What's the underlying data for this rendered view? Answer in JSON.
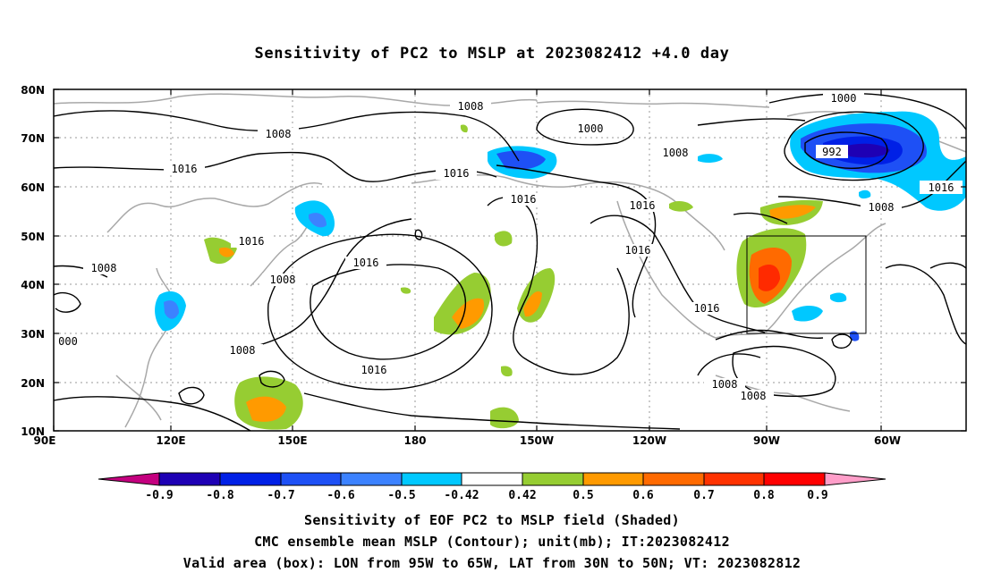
{
  "title": "Sensitivity of PC2 to MSLP at 2023082412 +4.0 day",
  "lat_labels": [
    "80N",
    "70N",
    "60N",
    "50N",
    "40N",
    "30N",
    "20N",
    "10N"
  ],
  "lon_labels": [
    "90E",
    "120E",
    "150E",
    "180",
    "150W",
    "120W",
    "90W",
    "60W"
  ],
  "contour_labels": [
    "1008",
    "1000",
    "1008",
    "1008",
    "1016",
    "1016",
    "1016",
    "1016",
    "1016",
    "1016",
    "1016",
    "1008",
    "1008",
    "000",
    "1008",
    "1016",
    "1016",
    "1000",
    "992",
    "1016",
    "1008",
    "1008",
    "1008"
  ],
  "colorbar": {
    "tick_labels": [
      "-0.9",
      "-0.8",
      "-0.7",
      "-0.6",
      "-0.5",
      "-0.42",
      "0.42",
      "0.5",
      "0.6",
      "0.7",
      "0.8",
      "0.9"
    ],
    "colors": [
      "#c4007f",
      "#1e00b4",
      "#0020e6",
      "#1e50f5",
      "#3c82ff",
      "#00c8ff",
      "#ffffff",
      "#96cd32",
      "#ff9a00",
      "#ff6a00",
      "#ff3200",
      "#ff0000",
      "#ff9ec9"
    ]
  },
  "caption": {
    "line1": "Sensitivity of EOF PC2 to MSLP field (Shaded)",
    "line2": "CMC ensemble mean MSLP (Contour); unit(mb); IT:2023082412",
    "line3": "Valid area (box): LON from 95W to 65W, LAT from 30N to 50N; VT: 2023082812"
  }
}
